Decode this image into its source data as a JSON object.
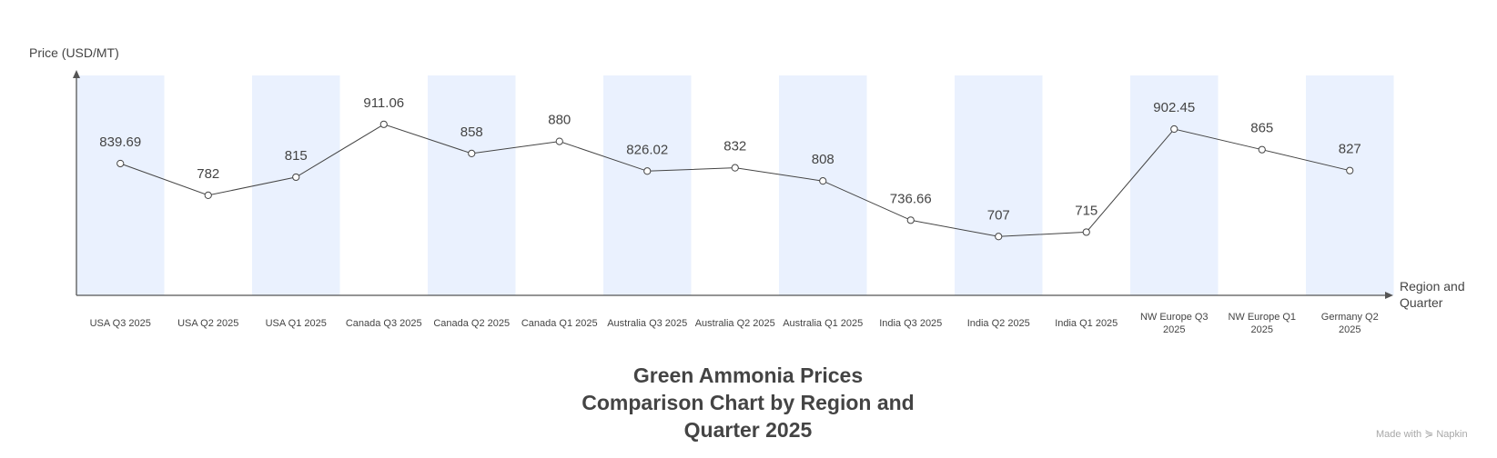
{
  "chart_data": {
    "type": "line",
    "title": "Green Ammonia Prices Comparison Chart by Region and Quarter 2025",
    "title_lines": [
      "Green Ammonia Prices",
      "Comparison Chart by Region and",
      "Quarter 2025"
    ],
    "ylabel": "Price (USD/MT)",
    "xlabel": "Region and Quarter",
    "xlabel_lines": [
      "Region and",
      "Quarter"
    ],
    "categories": [
      "USA Q3 2025",
      "USA Q2 2025",
      "USA Q1 2025",
      "Canada Q3 2025",
      "Canada Q2 2025",
      "Canada Q1 2025",
      "Australia Q3 2025",
      "Australia Q2 2025",
      "Australia Q1 2025",
      "India Q3 2025",
      "India Q2 2025",
      "India Q1 2025",
      "NW Europe Q3 2025",
      "NW Europe Q1 2025",
      "Germany Q2 2025"
    ],
    "category_lines": [
      [
        "USA Q3 2025"
      ],
      [
        "USA Q2 2025"
      ],
      [
        "USA Q1 2025"
      ],
      [
        "Canada Q3 2025"
      ],
      [
        "Canada Q2 2025"
      ],
      [
        "Canada Q1 2025"
      ],
      [
        "Australia Q3 2025"
      ],
      [
        "Australia Q2 2025"
      ],
      [
        "Australia Q1 2025"
      ],
      [
        "India Q3 2025"
      ],
      [
        "India Q2 2025"
      ],
      [
        "India Q1 2025"
      ],
      [
        "NW Europe Q3",
        "2025"
      ],
      [
        "NW Europe Q1",
        "2025"
      ],
      [
        "Germany Q2",
        "2025"
      ]
    ],
    "values": [
      839.69,
      782,
      815,
      911.06,
      858,
      880,
      826.02,
      832,
      808,
      736.66,
      707,
      715,
      902.45,
      865,
      827
    ],
    "value_labels": [
      "839.69",
      "782",
      "815",
      "911.06",
      "858",
      "880",
      "826.02",
      "832",
      "808",
      "736.66",
      "707",
      "715",
      "902.45",
      "865",
      "827"
    ],
    "ylim": [
      600,
      1000
    ],
    "grid": false,
    "y_tick_labels": false,
    "line_color": "#444444",
    "band_color": "#eaf1fe",
    "axis_color": "#555555"
  },
  "watermark": {
    "prefix": "Made with",
    "logo": "⋟",
    "brand": "Napkin"
  }
}
